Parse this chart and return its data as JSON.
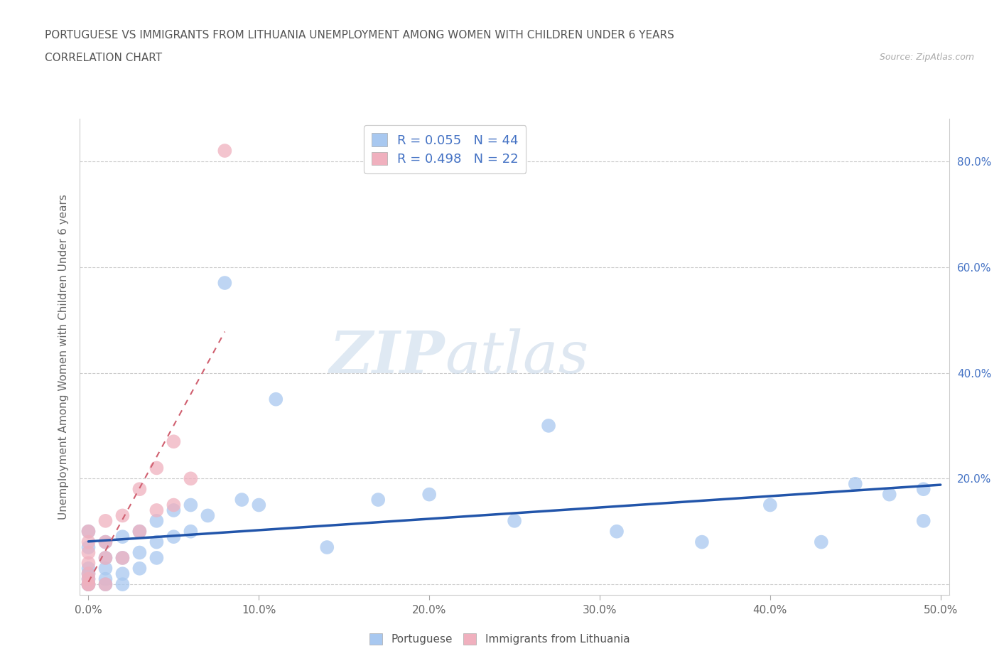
{
  "title_line1": "PORTUGUESE VS IMMIGRANTS FROM LITHUANIA UNEMPLOYMENT AMONG WOMEN WITH CHILDREN UNDER 6 YEARS",
  "title_line2": "CORRELATION CHART",
  "source": "Source: ZipAtlas.com",
  "ylabel": "Unemployment Among Women with Children Under 6 years",
  "xlim": [
    -0.005,
    0.505
  ],
  "ylim": [
    -0.02,
    0.88
  ],
  "xticks": [
    0.0,
    0.1,
    0.2,
    0.3,
    0.4,
    0.5
  ],
  "yticks": [
    0.0,
    0.2,
    0.4,
    0.6,
    0.8
  ],
  "xtick_labels": [
    "0.0%",
    "10.0%",
    "20.0%",
    "30.0%",
    "40.0%",
    "50.0%"
  ],
  "ytick_labels_right": [
    "",
    "20.0%",
    "40.0%",
    "60.0%",
    "80.0%"
  ],
  "portuguese_color": "#a8c8f0",
  "lithuanian_color": "#f0b0be",
  "portuguese_R": 0.055,
  "portuguese_N": 44,
  "lithuanian_R": 0.498,
  "lithuanian_N": 22,
  "legend_R_color": "#4472c4",
  "trend_portuguese_color": "#2255aa",
  "trend_lithuanian_color": "#d06070",
  "watermark_zip": "ZIP",
  "watermark_atlas": "atlas",
  "portuguese_x": [
    0.0,
    0.0,
    0.0,
    0.0,
    0.0,
    0.0,
    0.0,
    0.01,
    0.01,
    0.01,
    0.01,
    0.01,
    0.02,
    0.02,
    0.02,
    0.02,
    0.03,
    0.03,
    0.03,
    0.04,
    0.04,
    0.04,
    0.05,
    0.05,
    0.06,
    0.06,
    0.07,
    0.08,
    0.09,
    0.1,
    0.11,
    0.14,
    0.17,
    0.2,
    0.25,
    0.27,
    0.31,
    0.36,
    0.4,
    0.43,
    0.45,
    0.47,
    0.49,
    0.49
  ],
  "portuguese_y": [
    0.0,
    0.0,
    0.01,
    0.02,
    0.03,
    0.07,
    0.1,
    0.0,
    0.01,
    0.03,
    0.05,
    0.08,
    0.0,
    0.02,
    0.05,
    0.09,
    0.03,
    0.06,
    0.1,
    0.05,
    0.08,
    0.12,
    0.09,
    0.14,
    0.1,
    0.15,
    0.13,
    0.57,
    0.16,
    0.15,
    0.35,
    0.07,
    0.16,
    0.17,
    0.12,
    0.3,
    0.1,
    0.08,
    0.15,
    0.08,
    0.19,
    0.17,
    0.12,
    0.18
  ],
  "lithuanian_x": [
    0.0,
    0.0,
    0.0,
    0.0,
    0.0,
    0.0,
    0.0,
    0.0,
    0.01,
    0.01,
    0.01,
    0.01,
    0.02,
    0.02,
    0.03,
    0.03,
    0.04,
    0.04,
    0.05,
    0.05,
    0.06,
    0.08
  ],
  "lithuanian_y": [
    0.0,
    0.0,
    0.01,
    0.02,
    0.04,
    0.06,
    0.08,
    0.1,
    0.0,
    0.05,
    0.08,
    0.12,
    0.05,
    0.13,
    0.1,
    0.18,
    0.14,
    0.22,
    0.15,
    0.27,
    0.2,
    0.82
  ]
}
